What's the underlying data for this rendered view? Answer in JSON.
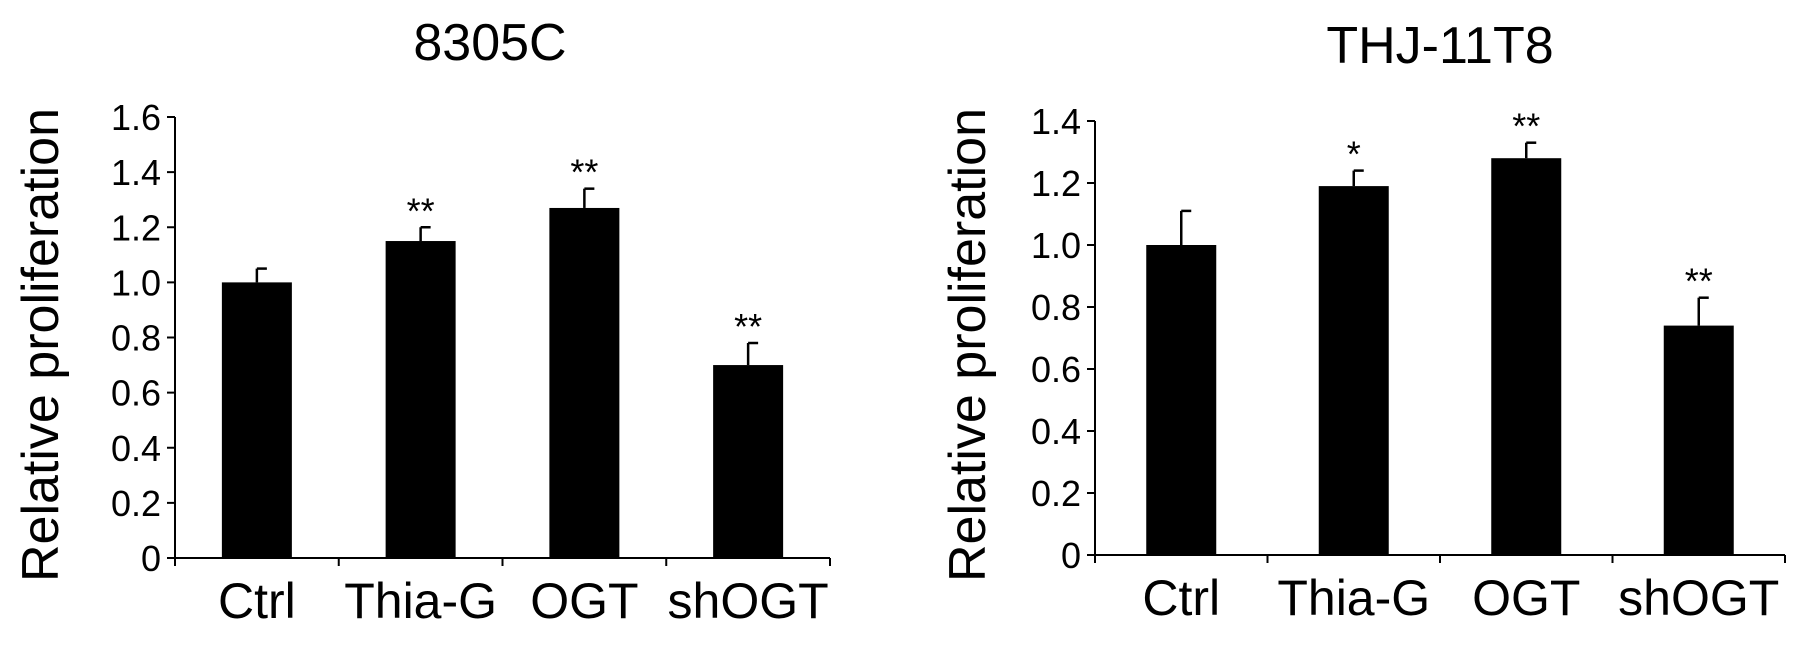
{
  "chart_data": [
    {
      "type": "bar",
      "title": "8305C",
      "xlabel": "",
      "ylabel": "Relative proliferation",
      "categories": [
        "Ctrl",
        "Thia-G",
        "OGT",
        "shOGT"
      ],
      "values": [
        1.0,
        1.15,
        1.27,
        0.7
      ],
      "errors": [
        0.05,
        0.05,
        0.07,
        0.08
      ],
      "significance": [
        "",
        "**",
        "**",
        "**"
      ],
      "ylim": [
        0,
        1.6
      ],
      "yticks": [
        "0",
        "0.2",
        "0.4",
        "0.6",
        "0.8",
        "1.0",
        "1.2",
        "1.4",
        "1.6"
      ],
      "bar_color": "#000000",
      "grid": false
    },
    {
      "type": "bar",
      "title": "THJ-11T8",
      "xlabel": "",
      "ylabel": "Relative proliferation",
      "categories": [
        "Ctrl",
        "Thia-G",
        "OGT",
        "shOGT"
      ],
      "values": [
        1.0,
        1.19,
        1.28,
        0.74
      ],
      "errors": [
        0.11,
        0.05,
        0.05,
        0.09
      ],
      "significance": [
        "",
        "*",
        "**",
        "**"
      ],
      "ylim": [
        0,
        1.4
      ],
      "yticks": [
        "0",
        "0.2",
        "0.4",
        "0.6",
        "0.8",
        "1.0",
        "1.2",
        "1.4"
      ],
      "bar_color": "#000000",
      "grid": false
    }
  ]
}
